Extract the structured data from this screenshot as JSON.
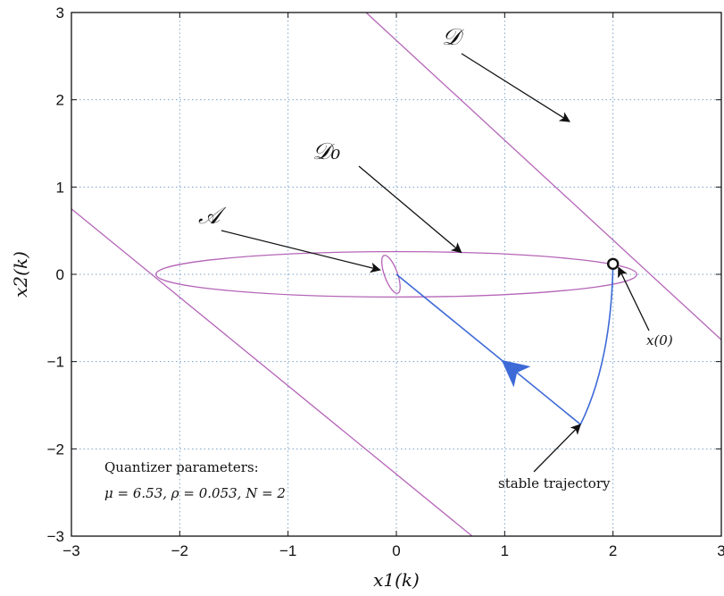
{
  "chart_data": {
    "type": "line",
    "title": "",
    "xlabel": "x1(k)",
    "ylabel": "x2(k)",
    "xlim": [
      -3,
      3
    ],
    "ylim": [
      -3,
      3
    ],
    "xticks": [
      -3,
      -2,
      -1,
      0,
      1,
      2,
      3
    ],
    "yticks": [
      -3,
      -2,
      -1,
      0,
      1,
      2,
      3
    ],
    "xtick_labels": [
      "−3",
      "−2",
      "−1",
      "0",
      "1",
      "2",
      "3"
    ],
    "ytick_labels": [
      "−3",
      "−2",
      "−1",
      "0",
      "1",
      "2",
      "3"
    ],
    "grid": true,
    "colors": {
      "region": "#b565b8",
      "trajectory": "#3d6ad6",
      "text": "#111111"
    },
    "series": [
      {
        "name": "𝒟",
        "values": [
          [
            -0.28,
            3.0
          ],
          [
            3.0,
            -0.75
          ]
        ]
      },
      {
        "name": "𝒟",
        "values": [
          [
            -3.0,
            0.75
          ],
          [
            0.7,
            -3.0
          ]
        ]
      },
      {
        "name": "𝒟₀",
        "center": [
          0.0,
          0.0
        ],
        "semi_axes": [
          2.22,
          0.26
        ]
      },
      {
        "name": "𝒜",
        "center": [
          -0.05,
          0.0
        ],
        "semi_axes": [
          0.06,
          0.23
        ],
        "tilt_deg": 20
      },
      {
        "name": "stable trajectory",
        "values": [
          [
            2.0,
            0.12
          ],
          [
            1.7,
            -1.72
          ],
          [
            0.0,
            0.0
          ]
        ]
      }
    ],
    "point": {
      "label": "x(0)",
      "x": 2.0,
      "y": 0.12
    },
    "annotations": [
      {
        "text": "𝒟",
        "target": [
          1.6,
          1.75
        ]
      },
      {
        "text": "𝒟₀",
        "target": [
          0.6,
          0.25
        ]
      },
      {
        "text": "𝒜",
        "target": [
          -0.15,
          0.05
        ]
      },
      {
        "text": "x(0)",
        "target": [
          2.05,
          0.08
        ]
      },
      {
        "text": "stable trajectory",
        "target": [
          1.7,
          -1.72
        ]
      }
    ],
    "note_lines": [
      "Quantizer parameters:",
      "μ = 6.53, ρ = 0.053, N = 2"
    ]
  }
}
